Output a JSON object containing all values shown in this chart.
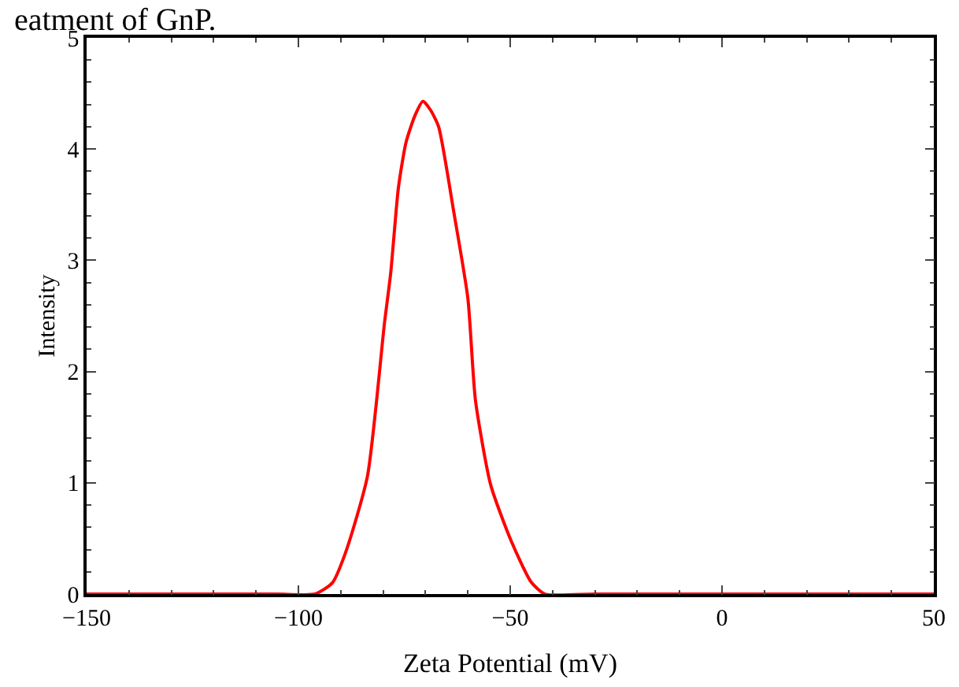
{
  "chart_data": {
    "type": "line",
    "xlabel": "Zeta Potential (mV)",
    "ylabel": "Intensity",
    "annotations": [
      "eatment of GnP."
    ],
    "series": [
      {
        "color": "#ff0000",
        "x": [
          -150,
          -125,
          -105,
          -96.1,
          -92,
          -88.8,
          -83.7,
          -79.7,
          -78.2,
          -76.4,
          -74.6,
          -72.5,
          -70.6,
          -68.8,
          -66.9,
          -63.3,
          -60.0,
          -58.2,
          -54.6,
          -49.8,
          -45.1,
          -41.8,
          -30,
          0,
          25,
          50
        ],
        "values": [
          0,
          0,
          0,
          0,
          0.1,
          0.38,
          1.06,
          2.43,
          2.89,
          3.65,
          4.06,
          4.3,
          4.43,
          4.35,
          4.2,
          3.43,
          2.66,
          1.74,
          0.98,
          0.48,
          0.11,
          0,
          0,
          0,
          0,
          0
        ]
      }
    ],
    "xlim": [
      -150,
      50
    ],
    "xticks": [
      {
        "value": -150,
        "label": "−150"
      },
      {
        "value": -100,
        "label": "−100"
      },
      {
        "value": -50,
        "label": "−50"
      },
      0,
      50
    ],
    "ylim": [
      0,
      5
    ],
    "yticks": [
      0,
      1,
      2,
      3,
      4,
      5
    ],
    "line_style": "solid",
    "marker": "none"
  }
}
